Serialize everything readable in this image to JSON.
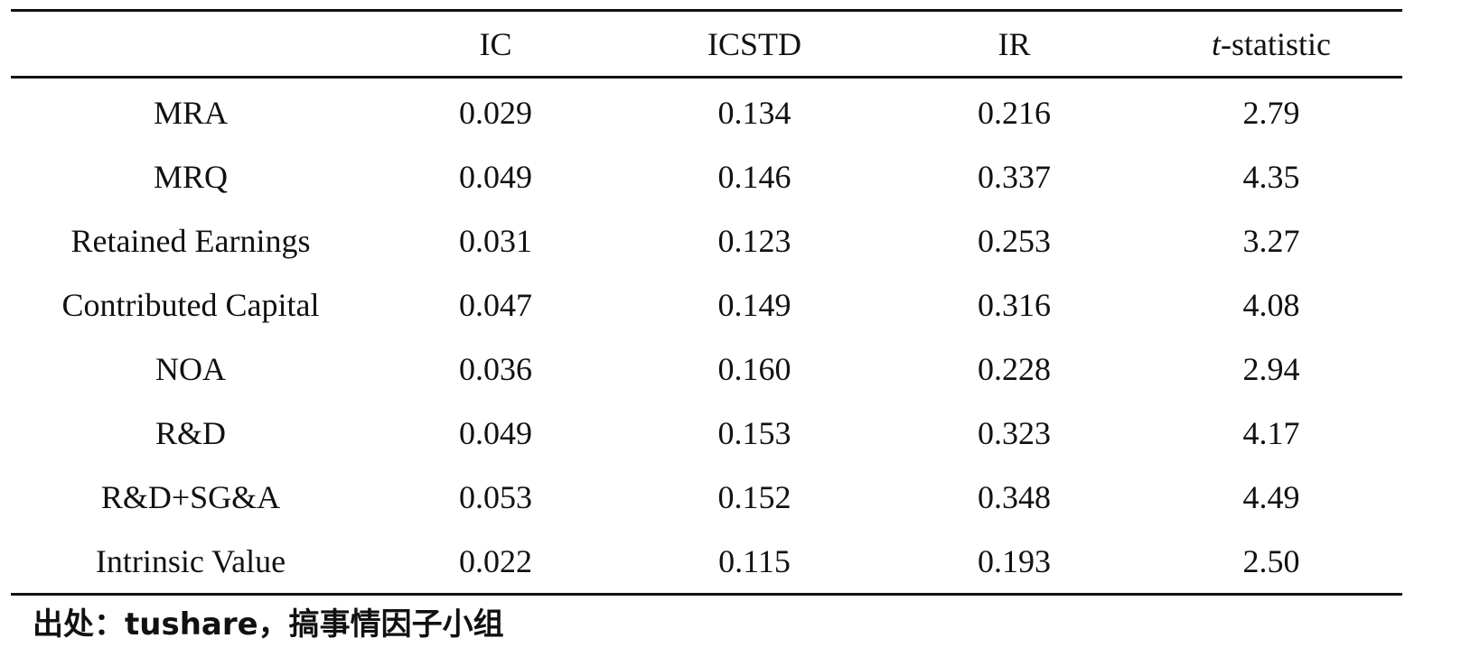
{
  "table": {
    "headers": [
      "",
      "IC",
      "ICSTD",
      "IR",
      "-statistic"
    ],
    "header_t_prefix": "t",
    "rows": [
      [
        "MRA",
        "0.029",
        "0.134",
        "0.216",
        "2.79"
      ],
      [
        "MRQ",
        "0.049",
        "0.146",
        "0.337",
        "4.35"
      ],
      [
        "Retained Earnings",
        "0.031",
        "0.123",
        "0.253",
        "3.27"
      ],
      [
        "Contributed Capital",
        "0.047",
        "0.149",
        "0.316",
        "4.08"
      ],
      [
        "NOA",
        "0.036",
        "0.160",
        "0.228",
        "2.94"
      ],
      [
        "R&D",
        "0.049",
        "0.153",
        "0.323",
        "4.17"
      ],
      [
        "R&D+SG&A",
        "0.053",
        "0.152",
        "0.348",
        "4.49"
      ],
      [
        "Intrinsic Value",
        "0.022",
        "0.115",
        "0.193",
        "2.50"
      ]
    ]
  },
  "source_note": "出处：tushare，搞事情因子小组"
}
